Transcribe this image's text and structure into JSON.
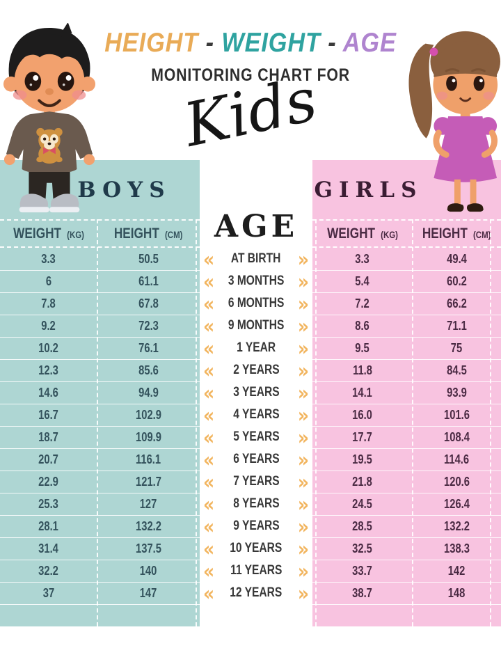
{
  "title": {
    "height_word": "HEIGHT",
    "weight_word": "WEIGHT",
    "age_word": "AGE",
    "dash": "-",
    "subtitle": "MONITORING CHART FOR",
    "kids": "Kids"
  },
  "colors": {
    "boys_panel": "#aed6d3",
    "girls_panel": "#f8c3e0",
    "boys_text": "#33525c",
    "girls_text": "#4a2a43",
    "chevron": "#f2b55f",
    "title_orange": "#e9ab57",
    "title_teal": "#2fa3a0",
    "title_purple": "#af84cf"
  },
  "boys_table": {
    "title": "BOYS",
    "col1_label": "WEIGHT",
    "col1_unit": "(KG)",
    "col2_label": "HEIGHT",
    "col2_unit": "(CM)",
    "rows": [
      {
        "weight": "3.3",
        "height": "50.5"
      },
      {
        "weight": "6",
        "height": "61.1"
      },
      {
        "weight": "7.8",
        "height": "67.8"
      },
      {
        "weight": "9.2",
        "height": "72.3"
      },
      {
        "weight": "10.2",
        "height": "76.1"
      },
      {
        "weight": "12.3",
        "height": "85.6"
      },
      {
        "weight": "14.6",
        "height": "94.9"
      },
      {
        "weight": "16.7",
        "height": "102.9"
      },
      {
        "weight": "18.7",
        "height": "109.9"
      },
      {
        "weight": "20.7",
        "height": "116.1"
      },
      {
        "weight": "22.9",
        "height": "121.7"
      },
      {
        "weight": "25.3",
        "height": "127"
      },
      {
        "weight": "28.1",
        "height": "132.2"
      },
      {
        "weight": "31.4",
        "height": "137.5"
      },
      {
        "weight": "32.2",
        "height": "140"
      },
      {
        "weight": "37",
        "height": "147"
      }
    ]
  },
  "girls_table": {
    "title": "GIRLS",
    "col1_label": "WEIGHT",
    "col1_unit": "(KG)",
    "col2_label": "HEIGHT",
    "col2_unit": "(CM)",
    "rows": [
      {
        "weight": "3.3",
        "height": "49.4"
      },
      {
        "weight": "5.4",
        "height": "60.2"
      },
      {
        "weight": "7.2",
        "height": "66.2"
      },
      {
        "weight": "8.6",
        "height": "71.1"
      },
      {
        "weight": "9.5",
        "height": "75"
      },
      {
        "weight": "11.8",
        "height": "84.5"
      },
      {
        "weight": "14.1",
        "height": "93.9"
      },
      {
        "weight": "16.0",
        "height": "101.6"
      },
      {
        "weight": "17.7",
        "height": "108.4"
      },
      {
        "weight": "19.5",
        "height": "114.6"
      },
      {
        "weight": "21.8",
        "height": "120.6"
      },
      {
        "weight": "24.5",
        "height": "126.4"
      },
      {
        "weight": "28.5",
        "height": "132.2"
      },
      {
        "weight": "32.5",
        "height": "138.3"
      },
      {
        "weight": "33.7",
        "height": "142"
      },
      {
        "weight": "38.7",
        "height": "148"
      }
    ]
  },
  "age_column": {
    "title": "AGE",
    "left_chevron": "«",
    "right_chevron": "»",
    "ages": [
      "AT BIRTH",
      "3 MONTHS",
      "6 MONTHS",
      "9 MONTHS",
      "1 YEAR",
      "2 YEARS",
      "3 YEARS",
      "4 YEARS",
      "5 YEARS",
      "6 YEARS",
      "7 YEARS",
      "8 YEARS",
      "9 YEARS",
      "10 YEARS",
      "11 YEARS",
      "12 YEARS"
    ]
  },
  "chart_data": {
    "type": "table",
    "title": "HEIGHT - WEIGHT - AGE MONITORING CHART FOR Kids",
    "categories": [
      "AT BIRTH",
      "3 MONTHS",
      "6 MONTHS",
      "9 MONTHS",
      "1 YEAR",
      "2 YEARS",
      "3 YEARS",
      "4 YEARS",
      "5 YEARS",
      "6 YEARS",
      "7 YEARS",
      "8 YEARS",
      "9 YEARS",
      "10 YEARS",
      "11 YEARS",
      "12 YEARS"
    ],
    "series": [
      {
        "name": "Boys weight (kg)",
        "values": [
          3.3,
          6,
          7.8,
          9.2,
          10.2,
          12.3,
          14.6,
          16.7,
          18.7,
          20.7,
          22.9,
          25.3,
          28.1,
          31.4,
          32.2,
          37
        ]
      },
      {
        "name": "Boys height (cm)",
        "values": [
          50.5,
          61.1,
          67.8,
          72.3,
          76.1,
          85.6,
          94.9,
          102.9,
          109.9,
          116.1,
          121.7,
          127,
          132.2,
          137.5,
          140,
          147
        ]
      },
      {
        "name": "Girls weight (kg)",
        "values": [
          3.3,
          5.4,
          7.2,
          8.6,
          9.5,
          11.8,
          14.1,
          16.0,
          17.7,
          19.5,
          21.8,
          24.5,
          28.5,
          32.5,
          33.7,
          38.7
        ]
      },
      {
        "name": "Girls height (cm)",
        "values": [
          49.4,
          60.2,
          66.2,
          71.1,
          75,
          84.5,
          93.9,
          101.6,
          108.4,
          114.6,
          120.6,
          126.4,
          132.2,
          138.3,
          142,
          148
        ]
      }
    ]
  }
}
